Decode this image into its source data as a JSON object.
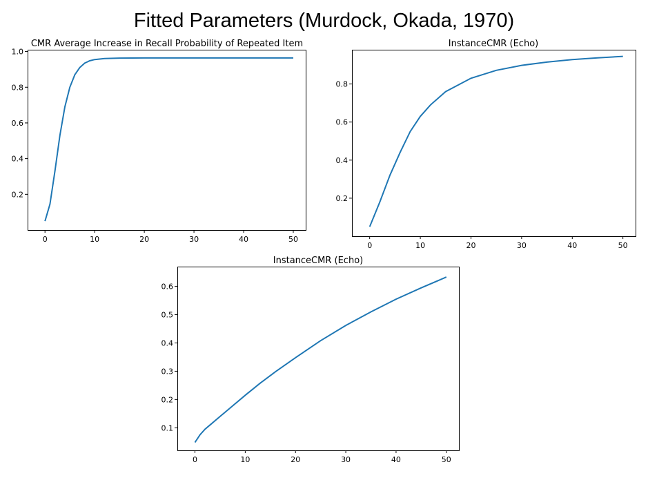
{
  "figure": {
    "title": "Fitted Parameters (Murdock, Okada, 1970)"
  },
  "chart_data": [
    {
      "type": "line",
      "title": "CMR Average Increase in Recall Probability of Repeated Item",
      "xlabel": "",
      "ylabel": "",
      "xlim": [
        -3.5,
        52.5
      ],
      "ylim": [
        0.0,
        1.01
      ],
      "xticks": [
        0,
        10,
        20,
        30,
        40,
        50
      ],
      "yticks": [
        0.2,
        0.4,
        0.6,
        0.8,
        1.0
      ],
      "ytick_labels": [
        "0.2",
        "0.4",
        "0.6",
        "0.8",
        "1.0"
      ],
      "grid": false,
      "series": [
        {
          "color": "#1f77b4",
          "x": [
            0,
            1,
            2,
            3,
            4,
            5,
            6,
            7,
            8,
            9,
            10,
            12,
            15,
            20,
            30,
            40,
            50
          ],
          "y": [
            0.05,
            0.145,
            0.33,
            0.53,
            0.69,
            0.8,
            0.87,
            0.91,
            0.935,
            0.948,
            0.955,
            0.961,
            0.963,
            0.964,
            0.964,
            0.964,
            0.964
          ]
        }
      ]
    },
    {
      "type": "line",
      "title": "InstanceCMR (Echo)",
      "xlabel": "",
      "ylabel": "",
      "xlim": [
        -3.5,
        52.5
      ],
      "ylim": [
        0.0,
        0.98
      ],
      "xticks": [
        0,
        10,
        20,
        30,
        40,
        50
      ],
      "yticks": [
        0.2,
        0.4,
        0.6,
        0.8
      ],
      "ytick_labels": [
        "0.2",
        "0.4",
        "0.6",
        "0.8"
      ],
      "grid": false,
      "series": [
        {
          "color": "#1f77b4",
          "x": [
            0,
            2,
            4,
            6,
            8,
            10,
            12,
            15,
            20,
            25,
            30,
            35,
            40,
            45,
            50
          ],
          "y": [
            0.05,
            0.18,
            0.32,
            0.44,
            0.55,
            0.63,
            0.69,
            0.76,
            0.83,
            0.872,
            0.898,
            0.915,
            0.928,
            0.937,
            0.945
          ]
        }
      ]
    },
    {
      "type": "line",
      "title": "InstanceCMR (Echo)",
      "xlabel": "",
      "ylabel": "",
      "xlim": [
        -3.5,
        52.5
      ],
      "ylim": [
        0.02,
        0.67
      ],
      "xticks": [
        0,
        10,
        20,
        30,
        40,
        50
      ],
      "yticks": [
        0.1,
        0.2,
        0.3,
        0.4,
        0.5,
        0.6
      ],
      "ytick_labels": [
        "0.1",
        "0.2",
        "0.3",
        "0.4",
        "0.5",
        "0.6"
      ],
      "grid": false,
      "series": [
        {
          "color": "#1f77b4",
          "x": [
            0,
            1,
            2,
            3,
            5,
            7,
            10,
            13,
            16,
            20,
            25,
            30,
            35,
            40,
            45,
            50
          ],
          "y": [
            0.048,
            0.075,
            0.095,
            0.11,
            0.14,
            0.17,
            0.215,
            0.258,
            0.298,
            0.348,
            0.408,
            0.462,
            0.51,
            0.555,
            0.595,
            0.633
          ]
        }
      ]
    }
  ]
}
